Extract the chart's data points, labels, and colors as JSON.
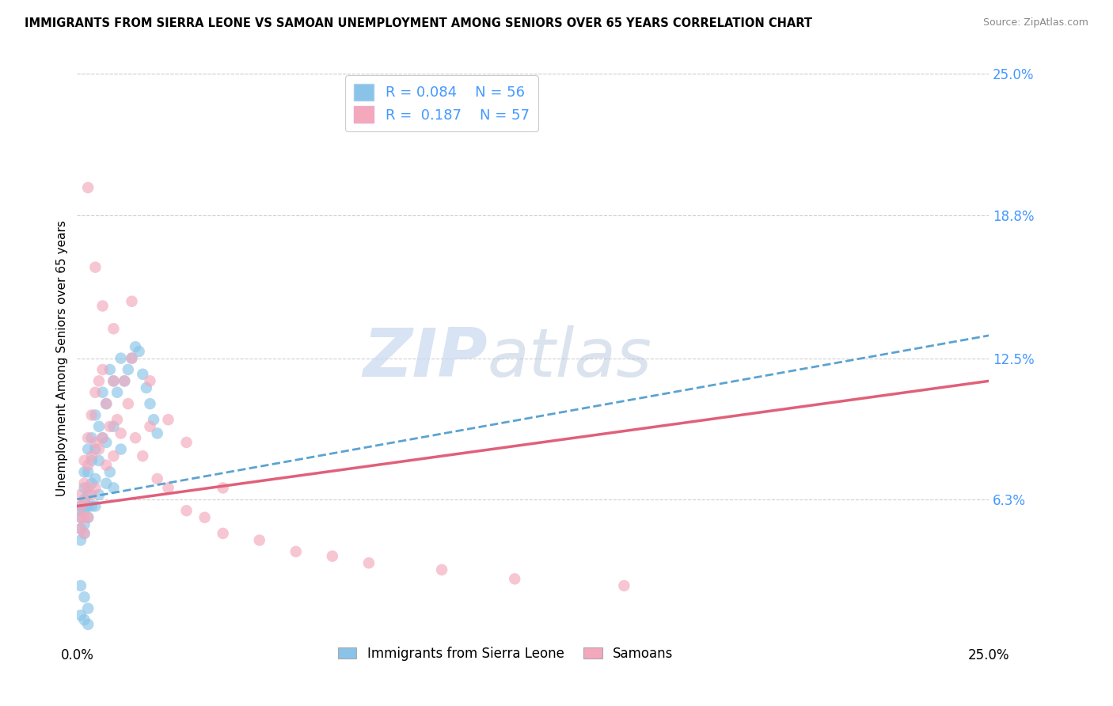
{
  "title": "IMMIGRANTS FROM SIERRA LEONE VS SAMOAN UNEMPLOYMENT AMONG SENIORS OVER 65 YEARS CORRELATION CHART",
  "source": "Source: ZipAtlas.com",
  "ylabel": "Unemployment Among Seniors over 65 years",
  "xlim": [
    0.0,
    0.25
  ],
  "ylim": [
    0.0,
    0.25
  ],
  "xtick_positions": [
    0.0,
    0.25
  ],
  "xtick_labels": [
    "0.0%",
    "25.0%"
  ],
  "ytick_values_right": [
    0.25,
    0.188,
    0.125,
    0.063
  ],
  "ytick_labels_right": [
    "25.0%",
    "18.8%",
    "12.5%",
    "6.3%"
  ],
  "legend_label1": "Immigrants from Sierra Leone",
  "legend_label2": "Samoans",
  "r1": "0.084",
  "n1": "56",
  "r2": "0.187",
  "n2": "57",
  "color1": "#89c4e8",
  "color2": "#f4a8bc",
  "line1_color": "#5ba3d0",
  "line2_color": "#e0607a",
  "background_color": "#ffffff",
  "watermark_zip": "ZIP",
  "watermark_atlas": "atlas",
  "grid_color": "#d0d0d0",
  "right_axis_color": "#4499ff",
  "sierra_leone_x": [
    0.001,
    0.001,
    0.001,
    0.001,
    0.001,
    0.002,
    0.002,
    0.002,
    0.002,
    0.002,
    0.002,
    0.003,
    0.003,
    0.003,
    0.003,
    0.003,
    0.004,
    0.004,
    0.004,
    0.004,
    0.005,
    0.005,
    0.005,
    0.005,
    0.006,
    0.006,
    0.006,
    0.007,
    0.007,
    0.008,
    0.008,
    0.008,
    0.009,
    0.009,
    0.01,
    0.01,
    0.01,
    0.011,
    0.012,
    0.012,
    0.013,
    0.014,
    0.015,
    0.016,
    0.017,
    0.018,
    0.019,
    0.02,
    0.021,
    0.022,
    0.001,
    0.002,
    0.003,
    0.001,
    0.002,
    0.003
  ],
  "sierra_leone_y": [
    0.06,
    0.058,
    0.055,
    0.05,
    0.045,
    0.075,
    0.068,
    0.063,
    0.058,
    0.052,
    0.048,
    0.085,
    0.075,
    0.065,
    0.06,
    0.055,
    0.09,
    0.08,
    0.07,
    0.06,
    0.1,
    0.085,
    0.072,
    0.06,
    0.095,
    0.08,
    0.065,
    0.11,
    0.09,
    0.105,
    0.088,
    0.07,
    0.12,
    0.075,
    0.115,
    0.095,
    0.068,
    0.11,
    0.125,
    0.085,
    0.115,
    0.12,
    0.125,
    0.13,
    0.128,
    0.118,
    0.112,
    0.105,
    0.098,
    0.092,
    0.025,
    0.02,
    0.015,
    0.012,
    0.01,
    0.008
  ],
  "samoans_x": [
    0.001,
    0.001,
    0.001,
    0.001,
    0.002,
    0.002,
    0.002,
    0.002,
    0.002,
    0.003,
    0.003,
    0.003,
    0.003,
    0.004,
    0.004,
    0.004,
    0.005,
    0.005,
    0.005,
    0.006,
    0.006,
    0.007,
    0.007,
    0.008,
    0.008,
    0.009,
    0.01,
    0.01,
    0.011,
    0.012,
    0.013,
    0.014,
    0.015,
    0.016,
    0.018,
    0.02,
    0.022,
    0.025,
    0.03,
    0.035,
    0.04,
    0.05,
    0.06,
    0.07,
    0.08,
    0.1,
    0.12,
    0.15,
    0.003,
    0.005,
    0.007,
    0.01,
    0.015,
    0.02,
    0.025,
    0.03,
    0.04
  ],
  "samoans_y": [
    0.065,
    0.06,
    0.055,
    0.05,
    0.08,
    0.07,
    0.062,
    0.055,
    0.048,
    0.09,
    0.078,
    0.068,
    0.055,
    0.1,
    0.082,
    0.065,
    0.11,
    0.088,
    0.068,
    0.115,
    0.085,
    0.12,
    0.09,
    0.105,
    0.078,
    0.095,
    0.115,
    0.082,
    0.098,
    0.092,
    0.115,
    0.105,
    0.15,
    0.09,
    0.082,
    0.095,
    0.072,
    0.068,
    0.058,
    0.055,
    0.048,
    0.045,
    0.04,
    0.038,
    0.035,
    0.032,
    0.028,
    0.025,
    0.2,
    0.165,
    0.148,
    0.138,
    0.125,
    0.115,
    0.098,
    0.088,
    0.068
  ],
  "line1_x0": 0.0,
  "line1_y0": 0.063,
  "line1_x1": 0.25,
  "line1_y1": 0.135,
  "line2_x0": 0.0,
  "line2_y0": 0.06,
  "line2_x1": 0.25,
  "line2_y1": 0.115
}
